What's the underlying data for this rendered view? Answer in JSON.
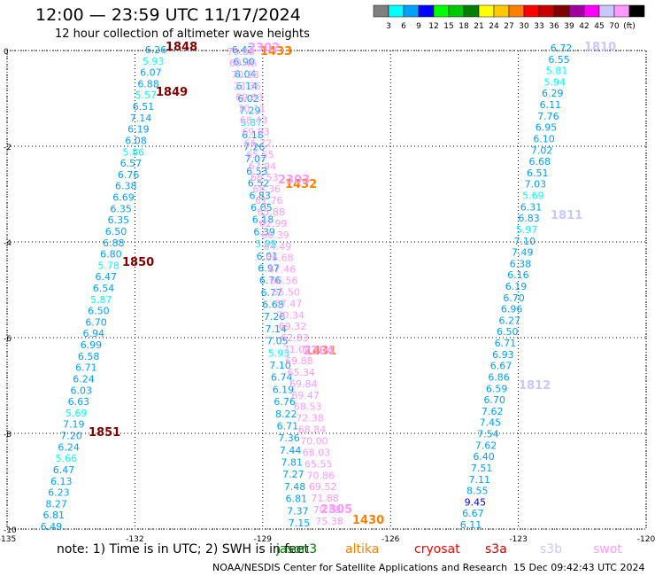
{
  "title": "12:00 — 23:59 UTC 11/17/2024",
  "subtitle": "12 hour collection of altimeter wave heights",
  "colorbar": {
    "colors": [
      "#7f7f7f",
      "#00ffff",
      "#00a0ff",
      "#0000ff",
      "#00ff00",
      "#00c800",
      "#008000",
      "#ffff00",
      "#ffc800",
      "#ff8000",
      "#ff0000",
      "#c80000",
      "#800000",
      "#a000a0",
      "#ff00ff",
      "#c8c8ff",
      "#ff99ff",
      "#000000"
    ],
    "labels": [
      "3",
      "6",
      "9",
      "12",
      "15",
      "18",
      "21",
      "24",
      "27",
      "30",
      "33",
      "36",
      "39",
      "42",
      "45",
      "70",
      "(ft)"
    ]
  },
  "note": "note:  1) Time is in UTC;  2) SWH is in feet",
  "legend": [
    {
      "name": "jason3",
      "color": "#008000"
    },
    {
      "name": "altika",
      "color": "#ff8000"
    },
    {
      "name": "cryosat",
      "color": "#ff0000"
    },
    {
      "name": "s3a",
      "color": "#c80000"
    },
    {
      "name": "s3b",
      "color": "#c8c8ff"
    },
    {
      "name": "swot",
      "color": "#ff99ff"
    }
  ],
  "footer": "NOAA/NESDIS Center for Satellite Applications and Research",
  "footer_date": "15 Dec 09:42:43 UTC 2024",
  "chart_data": {
    "type": "scatter",
    "x_ticks": [
      "-135",
      "-132",
      "-129",
      "-126",
      "-123",
      "-120"
    ],
    "y_ticks": [
      "0",
      "-2",
      "-4",
      "-6",
      "-8",
      "-10"
    ],
    "xlim": [
      -135,
      -120
    ],
    "ylim": [
      -10,
      0
    ],
    "grid": true,
    "tracks": [
      {
        "name": "track-a",
        "points": [
          [
            "6.26",
            "#00a0ff"
          ],
          [
            "5.93",
            "#00ffff"
          ],
          [
            "6.07",
            "#00a0ff"
          ],
          [
            "6.88",
            "#00a0ff"
          ],
          [
            "5.57",
            "#00ffff"
          ],
          [
            "6.51",
            "#00a0ff"
          ],
          [
            "7.14",
            "#00a0ff"
          ],
          [
            "6.19",
            "#00a0ff"
          ],
          [
            "6.08",
            "#00a0ff"
          ],
          [
            "5.86",
            "#00ffff"
          ],
          [
            "6.57",
            "#00a0ff"
          ],
          [
            "6.76",
            "#00a0ff"
          ],
          [
            "6.38",
            "#00a0ff"
          ],
          [
            "6.69",
            "#00a0ff"
          ],
          [
            "6.35",
            "#00a0ff"
          ],
          [
            "6.35",
            "#00a0ff"
          ],
          [
            "6.50",
            "#00a0ff"
          ],
          [
            "6.88",
            "#00a0ff"
          ],
          [
            "6.80",
            "#00a0ff"
          ],
          [
            "5.78",
            "#00ffff"
          ],
          [
            "6.47",
            "#00a0ff"
          ],
          [
            "6.54",
            "#00a0ff"
          ],
          [
            "5.87",
            "#00ffff"
          ],
          [
            "6.50",
            "#00a0ff"
          ],
          [
            "6.70",
            "#00a0ff"
          ],
          [
            "6.94",
            "#00a0ff"
          ],
          [
            "6.99",
            "#00a0ff"
          ],
          [
            "6.58",
            "#00a0ff"
          ],
          [
            "6.71",
            "#00a0ff"
          ],
          [
            "6.24",
            "#00a0ff"
          ],
          [
            "6.03",
            "#00a0ff"
          ],
          [
            "6.63",
            "#00a0ff"
          ],
          [
            "5.69",
            "#00ffff"
          ],
          [
            "7.19",
            "#00a0ff"
          ],
          [
            "7.20",
            "#00a0ff"
          ],
          [
            "6.24",
            "#00a0ff"
          ],
          [
            "5.66",
            "#00ffff"
          ],
          [
            "6.47",
            "#00a0ff"
          ],
          [
            "6.13",
            "#00a0ff"
          ],
          [
            "6.23",
            "#00a0ff"
          ],
          [
            "8.27",
            "#00a0ff"
          ],
          [
            "6.81",
            "#00a0ff"
          ],
          [
            "6.49",
            "#00a0ff"
          ]
        ],
        "times": [
          "1848",
          "1849",
          "1850",
          "1851"
        ],
        "time_color": "#800000"
      },
      {
        "name": "track-b",
        "points": [
          [
            "6.42",
            "#00a0ff"
          ],
          [
            "6.90",
            "#00a0ff"
          ],
          [
            "8.04",
            "#00a0ff"
          ],
          [
            "6.14",
            "#00a0ff"
          ],
          [
            "6.02",
            "#00a0ff"
          ],
          [
            "7.29",
            "#00a0ff"
          ],
          [
            "5.87",
            "#00ffff"
          ],
          [
            "6.18",
            "#00a0ff"
          ],
          [
            "7.26",
            "#00a0ff"
          ],
          [
            "7.07",
            "#00a0ff"
          ],
          [
            "6.53",
            "#00a0ff"
          ],
          [
            "6.52",
            "#00a0ff"
          ],
          [
            "6.83",
            "#00a0ff"
          ],
          [
            "6.05",
            "#00a0ff"
          ],
          [
            "6.18",
            "#00a0ff"
          ],
          [
            "6.39",
            "#00a0ff"
          ],
          [
            "5.99",
            "#00ffff"
          ],
          [
            "6.01",
            "#00a0ff"
          ],
          [
            "6.97",
            "#00a0ff"
          ],
          [
            "6.76",
            "#00a0ff"
          ],
          [
            "6.77",
            "#00a0ff"
          ],
          [
            "6.68",
            "#00a0ff"
          ],
          [
            "7.26",
            "#00a0ff"
          ],
          [
            "7.14",
            "#00a0ff"
          ],
          [
            "7.05",
            "#00a0ff"
          ],
          [
            "5.93",
            "#00ffff"
          ],
          [
            "7.10",
            "#00a0ff"
          ],
          [
            "6.74",
            "#00a0ff"
          ],
          [
            "6.19",
            "#00a0ff"
          ],
          [
            "6.76",
            "#00a0ff"
          ],
          [
            "8.22",
            "#00a0ff"
          ],
          [
            "6.71",
            "#00a0ff"
          ],
          [
            "7.36",
            "#00a0ff"
          ],
          [
            "7.44",
            "#00a0ff"
          ],
          [
            "7.81",
            "#00a0ff"
          ],
          [
            "7.27",
            "#00a0ff"
          ],
          [
            "7.48",
            "#00a0ff"
          ],
          [
            "6.81",
            "#00a0ff"
          ],
          [
            "7.37",
            "#00a0ff"
          ],
          [
            "7.15",
            "#00a0ff"
          ]
        ],
        "times": [
          "1433",
          "1432",
          "1431",
          "1430"
        ],
        "time_color": "#ff8000"
      },
      {
        "name": "track-swot",
        "points": [
          [
            "75.88",
            "#ff99ff"
          ],
          [
            "69.46",
            "#ff99ff"
          ],
          [
            "70.28",
            "#ff99ff"
          ],
          [
            "73.36",
            "#ff99ff"
          ],
          [
            "69.83",
            "#ff99ff"
          ],
          [
            "70.11",
            "#ff99ff"
          ],
          [
            "68.43",
            "#ff99ff"
          ],
          [
            "69.93",
            "#ff99ff"
          ],
          [
            "66.72",
            "#ff99ff"
          ],
          [
            "65.55",
            "#ff99ff"
          ],
          [
            "67.94",
            "#ff99ff"
          ],
          [
            "66.53",
            "#ff99ff"
          ],
          [
            "68.36",
            "#ff99ff"
          ],
          [
            "61.76",
            "#ff99ff"
          ],
          [
            "65.88",
            "#ff99ff"
          ],
          [
            "62.99",
            "#ff99ff"
          ],
          [
            "66.39",
            "#ff99ff"
          ],
          [
            "64.49",
            "#ff99ff"
          ],
          [
            "66.68",
            "#ff99ff"
          ],
          [
            "67.46",
            "#ff99ff"
          ],
          [
            "66.56",
            "#ff99ff"
          ],
          [
            "65.50",
            "#ff99ff"
          ],
          [
            "67.47",
            "#ff99ff"
          ],
          [
            "70.34",
            "#ff99ff"
          ],
          [
            "69.32",
            "#ff99ff"
          ],
          [
            "62.83",
            "#ff99ff"
          ],
          [
            "71.00",
            "#ff99ff"
          ],
          [
            "69.88",
            "#ff99ff"
          ],
          [
            "65.34",
            "#ff99ff"
          ],
          [
            "69.84",
            "#ff99ff"
          ],
          [
            "69.47",
            "#ff99ff"
          ],
          [
            "68.53",
            "#ff99ff"
          ],
          [
            "72.38",
            "#ff99ff"
          ],
          [
            "68.84",
            "#ff99ff"
          ],
          [
            "70.00",
            "#ff99ff"
          ],
          [
            "68.03",
            "#ff99ff"
          ],
          [
            "65.55",
            "#ff99ff"
          ],
          [
            "70.86",
            "#ff99ff"
          ],
          [
            "69.52",
            "#ff99ff"
          ],
          [
            "71.88",
            "#ff99ff"
          ],
          [
            "70.88",
            "#ff99ff"
          ],
          [
            "75.38",
            "#ff99ff"
          ]
        ],
        "times": [
          "2302",
          "2303",
          "2304",
          "2305"
        ],
        "time_color": "#ff99ff"
      },
      {
        "name": "track-c",
        "points": [
          [
            "6.72",
            "#00a0ff"
          ],
          [
            "6.55",
            "#00a0ff"
          ],
          [
            "5.81",
            "#00ffff"
          ],
          [
            "5.94",
            "#00ffff"
          ],
          [
            "6.29",
            "#00a0ff"
          ],
          [
            "6.11",
            "#00a0ff"
          ],
          [
            "7.76",
            "#00a0ff"
          ],
          [
            "6.95",
            "#00a0ff"
          ],
          [
            "6.10",
            "#00a0ff"
          ],
          [
            "7.02",
            "#00a0ff"
          ],
          [
            "6.68",
            "#00a0ff"
          ],
          [
            "6.51",
            "#00a0ff"
          ],
          [
            "7.03",
            "#00a0ff"
          ],
          [
            "5.69",
            "#00ffff"
          ],
          [
            "6.31",
            "#00a0ff"
          ],
          [
            "6.83",
            "#00a0ff"
          ],
          [
            "5.97",
            "#00ffff"
          ],
          [
            "7.10",
            "#00a0ff"
          ],
          [
            "7.49",
            "#00a0ff"
          ],
          [
            "6.38",
            "#00a0ff"
          ],
          [
            "6.16",
            "#00a0ff"
          ],
          [
            "6.19",
            "#00a0ff"
          ],
          [
            "6.70",
            "#00a0ff"
          ],
          [
            "6.96",
            "#00a0ff"
          ],
          [
            "6.27",
            "#00a0ff"
          ],
          [
            "6.50",
            "#00a0ff"
          ],
          [
            "6.71",
            "#00a0ff"
          ],
          [
            "6.93",
            "#00a0ff"
          ],
          [
            "6.67",
            "#00a0ff"
          ],
          [
            "6.86",
            "#00a0ff"
          ],
          [
            "6.59",
            "#00a0ff"
          ],
          [
            "6.70",
            "#00a0ff"
          ],
          [
            "7.62",
            "#00a0ff"
          ],
          [
            "7.45",
            "#00a0ff"
          ],
          [
            "7.54",
            "#00a0ff"
          ],
          [
            "7.62",
            "#00a0ff"
          ],
          [
            "6.40",
            "#00a0ff"
          ],
          [
            "7.51",
            "#00a0ff"
          ],
          [
            "7.11",
            "#00a0ff"
          ],
          [
            "8.55",
            "#00a0ff"
          ],
          [
            "9.45",
            "#0000ff"
          ],
          [
            "6.67",
            "#00a0ff"
          ],
          [
            "6.11",
            "#00a0ff"
          ]
        ],
        "times": [
          "1810",
          "1811",
          "1812"
        ],
        "time_color": "#c8c8ff"
      }
    ]
  }
}
